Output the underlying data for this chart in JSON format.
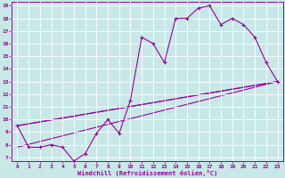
{
  "line1_x": [
    0,
    1,
    2,
    3,
    4,
    5,
    6,
    7,
    8,
    9,
    10,
    11,
    12,
    13,
    14,
    15,
    16,
    17,
    18,
    19,
    20,
    21,
    22,
    23
  ],
  "line1_y": [
    9.5,
    7.8,
    7.8,
    8.0,
    7.8,
    6.7,
    7.3,
    8.9,
    10.0,
    8.9,
    11.5,
    16.5,
    16.0,
    14.5,
    18.0,
    18.0,
    18.8,
    19.0,
    17.5,
    18.0,
    17.5,
    16.5,
    14.5,
    13.0
  ],
  "line2_x": [
    0,
    23
  ],
  "line2_y": [
    9.5,
    13.0
  ],
  "line3_x": [
    0,
    23
  ],
  "line3_y": [
    7.8,
    13.0
  ],
  "line4_x": [
    0,
    23
  ],
  "line4_y": [
    9.5,
    13.0
  ],
  "color": "#990099",
  "bg_color": "#c8e8e8",
  "grid_color": "#ffffff",
  "xlabel": "Windchill (Refroidissement éolien,°C)",
  "xlim": [
    -0.5,
    23.5
  ],
  "ylim": [
    6.7,
    19.3
  ],
  "ytick_vals": [
    7,
    8,
    9,
    10,
    11,
    12,
    13,
    14,
    15,
    16,
    17,
    18,
    19
  ],
  "ytick_labels": [
    "7",
    "8",
    "9",
    "10",
    "11",
    "12",
    "13",
    "14",
    "15",
    "16",
    "17",
    "18",
    "19"
  ],
  "xtick_vals": [
    0,
    1,
    2,
    3,
    4,
    5,
    6,
    7,
    8,
    9,
    10,
    11,
    12,
    13,
    14,
    15,
    16,
    17,
    18,
    19,
    20,
    21,
    22,
    23
  ],
  "xtick_labels": [
    "0",
    "1",
    "2",
    "3",
    "4",
    "5",
    "6",
    "7",
    "8",
    "9",
    "10",
    "11",
    "12",
    "13",
    "14",
    "15",
    "16",
    "17",
    "18",
    "19",
    "20",
    "21",
    "22",
    "23"
  ],
  "marker": "+"
}
